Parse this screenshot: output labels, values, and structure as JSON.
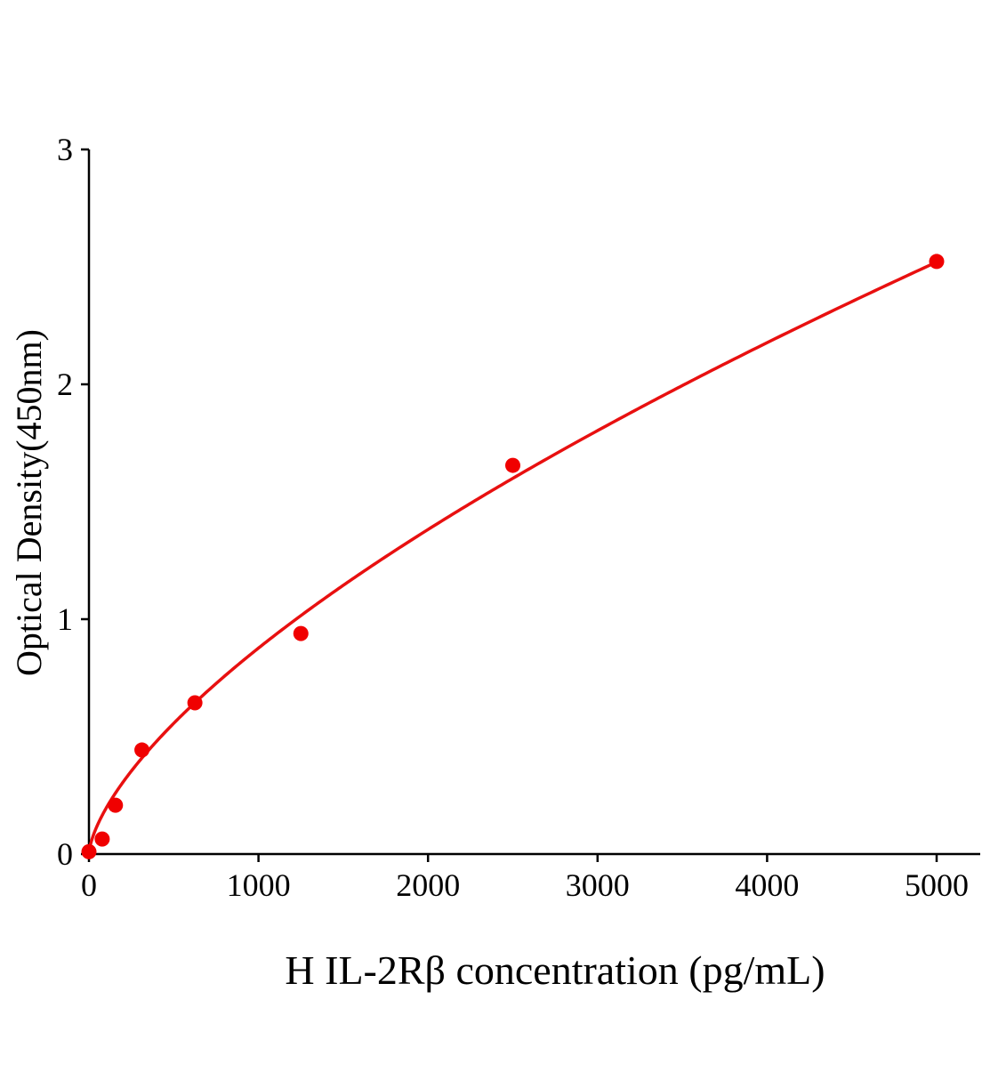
{
  "chart_data": {
    "type": "scatter",
    "title": "",
    "xlabel": "H IL-2Rβ concentration (pg/mL)",
    "ylabel": "Optical Density(450nm)",
    "xlim": [
      0,
      5250
    ],
    "ylim": [
      0,
      3
    ],
    "xticks": [
      "0",
      "1000",
      "2000",
      "3000",
      "4000",
      "5000"
    ],
    "yticks": [
      "0",
      "1",
      "2",
      "3"
    ],
    "grid": false,
    "colors": {
      "points": "#f00000",
      "curve": "#e81010",
      "axis": "#000000"
    },
    "series": [
      {
        "x": [
          0,
          78.125,
          156.25,
          312.5,
          625,
          1250,
          2500,
          5000
        ],
        "y": [
          0.01,
          0.064,
          0.208,
          0.443,
          0.644,
          0.939,
          1.655,
          2.523
        ]
      }
    ],
    "fit_curve": {
      "type": "power",
      "a": 0.00944,
      "b": 0.656
    }
  }
}
